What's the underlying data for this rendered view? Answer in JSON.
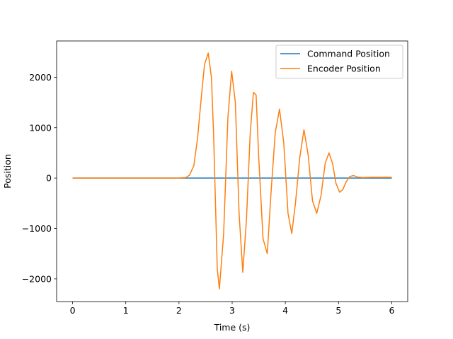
{
  "chart_data": {
    "type": "line",
    "title": "",
    "xlabel": "Time (s)",
    "ylabel": "Position",
    "xlim": [
      -0.3,
      6.3
    ],
    "ylim": [
      -2450,
      2720
    ],
    "xticks": [
      0,
      1,
      2,
      3,
      4,
      5,
      6
    ],
    "xtick_labels": [
      "0",
      "1",
      "2",
      "3",
      "4",
      "5",
      "6"
    ],
    "yticks": [
      -2000,
      -1000,
      0,
      1000,
      2000
    ],
    "ytick_labels": [
      "−2000",
      "−1000",
      "0",
      "1000",
      "2000"
    ],
    "grid": false,
    "legend_position": "top-right",
    "series": [
      {
        "name": "Command Position",
        "color": "#1f77b4",
        "x": [
          0,
          6
        ],
        "y": [
          0,
          0
        ]
      },
      {
        "name": "Encoder Position",
        "color": "#ff7f0e",
        "x": [
          0,
          2.0,
          2.13,
          2.2,
          2.28,
          2.35,
          2.42,
          2.48,
          2.55,
          2.61,
          2.65,
          2.72,
          2.76,
          2.84,
          2.92,
          2.99,
          3.06,
          3.13,
          3.2,
          3.27,
          3.34,
          3.4,
          3.45,
          3.5,
          3.58,
          3.66,
          3.73,
          3.81,
          3.89,
          3.97,
          4.05,
          4.12,
          4.19,
          4.27,
          4.35,
          4.43,
          4.51,
          4.59,
          4.67,
          4.75,
          4.82,
          4.89,
          4.95,
          5.02,
          5.08,
          5.14,
          5.21,
          5.28,
          5.36,
          5.45,
          5.6,
          5.8,
          6.0
        ],
        "y": [
          0,
          0,
          10,
          60,
          250,
          800,
          1600,
          2250,
          2480,
          2000,
          900,
          -1800,
          -2200,
          -1100,
          1200,
          2120,
          1500,
          -700,
          -1870,
          -800,
          900,
          1700,
          1650,
          400,
          -1200,
          -1500,
          -300,
          900,
          1370,
          700,
          -700,
          -1100,
          -500,
          400,
          960,
          450,
          -450,
          -700,
          -350,
          300,
          500,
          280,
          -100,
          -280,
          -230,
          -80,
          30,
          50,
          20,
          10,
          15,
          15,
          15
        ]
      }
    ]
  }
}
